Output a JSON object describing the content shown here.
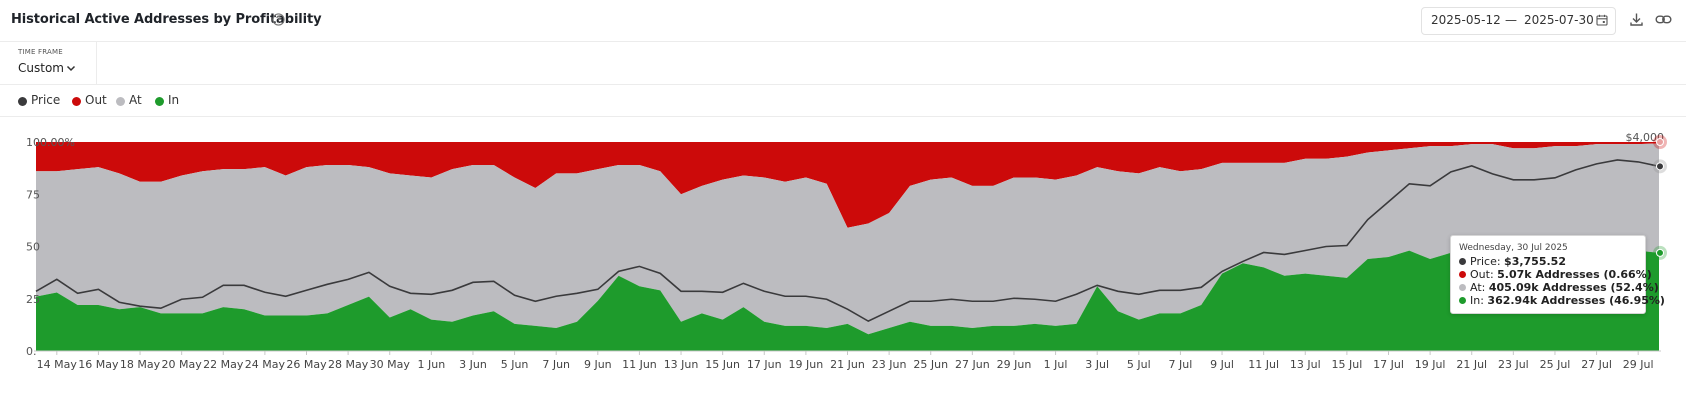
{
  "header": {
    "title": "Historical Active Addresses by Profitability",
    "help_icon": "help-circle-icon"
  },
  "date_range": {
    "start": "2025-05-12",
    "separator": "—",
    "end": "2025-07-30",
    "icon": "calendar-icon"
  },
  "toolbar": {
    "download_icon": "download-icon",
    "link_icon": "link-icon"
  },
  "time_frame": {
    "label": "TIME FRAME",
    "value": "Custom",
    "icon": "chevron-down-icon"
  },
  "legend": [
    {
      "name": "Price",
      "color": "#3a3a3c"
    },
    {
      "name": "Out",
      "color": "#cc0a0a"
    },
    {
      "name": "At",
      "color": "#bcbcc0"
    },
    {
      "name": "In",
      "color": "#1e9b2c"
    }
  ],
  "tooltip": {
    "date": "Wednesday, 30 Jul 2025",
    "rows": [
      {
        "label": "Price:",
        "value": "$3,755.52",
        "color": "#3a3a3c"
      },
      {
        "label": "Out:",
        "value": "5.07k Addresses (0.66%)",
        "color": "#cc0a0a"
      },
      {
        "label": "At:",
        "value": "405.09k Addresses (52.4%)",
        "color": "#bcbcc0"
      },
      {
        "label": "In:",
        "value": "362.94k Addresses (46.95%)",
        "color": "#1e9b2c"
      }
    ]
  },
  "chart_data": {
    "type": "area",
    "stacked": "percent",
    "x": [
      "13 May",
      "14 May",
      "15 May",
      "16 May",
      "17 May",
      "18 May",
      "19 May",
      "20 May",
      "21 May",
      "22 May",
      "23 May",
      "24 May",
      "25 May",
      "26 May",
      "27 May",
      "28 May",
      "29 May",
      "30 May",
      "31 May",
      "1 Jun",
      "2 Jun",
      "3 Jun",
      "4 Jun",
      "5 Jun",
      "6 Jun",
      "7 Jun",
      "8 Jun",
      "9 Jun",
      "10 Jun",
      "11 Jun",
      "12 Jun",
      "13 Jun",
      "14 Jun",
      "15 Jun",
      "16 Jun",
      "17 Jun",
      "18 Jun",
      "19 Jun",
      "20 Jun",
      "21 Jun",
      "22 Jun",
      "23 Jun",
      "24 Jun",
      "25 Jun",
      "26 Jun",
      "27 Jun",
      "28 Jun",
      "29 Jun",
      "30 Jun",
      "1 Jul",
      "2 Jul",
      "3 Jul",
      "4 Jul",
      "5 Jul",
      "6 Jul",
      "7 Jul",
      "8 Jul",
      "9 Jul",
      "10 Jul",
      "11 Jul",
      "12 Jul",
      "13 Jul",
      "14 Jul",
      "15 Jul",
      "16 Jul",
      "17 Jul",
      "18 Jul",
      "19 Jul",
      "20 Jul",
      "21 Jul",
      "22 Jul",
      "23 Jul",
      "24 Jul",
      "25 Jul",
      "26 Jul",
      "27 Jul",
      "28 Jul",
      "29 Jul",
      "30 Jul"
    ],
    "x_tick_labels": [
      "14 May",
      "16 May",
      "18 May",
      "20 May",
      "22 May",
      "24 May",
      "26 May",
      "28 May",
      "30 May",
      "1 Jun",
      "3 Jun",
      "5 Jun",
      "7 Jun",
      "9 Jun",
      "11 Jun",
      "13 Jun",
      "15 Jun",
      "17 Jun",
      "19 Jun",
      "21 Jun",
      "23 Jun",
      "25 Jun",
      "27 Jun",
      "29 Jun",
      "1 Jul",
      "3 Jul",
      "5 Jul",
      "7 Jul",
      "9 Jul",
      "11 Jul",
      "13 Jul",
      "15 Jul",
      "17 Jul",
      "19 Jul",
      "21 Jul",
      "23 Jul",
      "25 Jul",
      "27 Jul",
      "29 Jul"
    ],
    "series": [
      {
        "name": "In",
        "values": [
          26,
          28,
          22,
          22,
          20,
          21,
          18,
          18,
          18,
          21,
          20,
          17,
          17,
          17,
          18,
          22,
          26,
          16,
          20,
          15,
          14,
          17,
          19,
          13,
          12,
          11,
          14,
          24,
          36,
          31,
          29,
          14,
          18,
          15,
          21,
          14,
          12,
          12,
          11,
          13,
          8,
          11,
          14,
          12,
          12,
          11,
          12,
          12,
          13,
          12,
          13,
          31,
          19,
          15,
          18,
          18,
          22,
          37,
          42,
          40,
          36,
          37,
          36,
          35,
          44,
          45,
          48,
          44,
          47,
          49,
          48,
          47,
          46,
          48,
          46,
          45,
          47,
          48,
          46.95
        ]
      },
      {
        "name": "Out",
        "values": [
          14,
          14,
          13,
          12,
          15,
          19,
          19,
          16,
          14,
          13,
          13,
          12,
          16,
          12,
          11,
          11,
          12,
          15,
          16,
          17,
          13,
          11,
          11,
          17,
          22,
          15,
          15,
          13,
          11,
          11,
          14,
          25,
          21,
          18,
          16,
          17,
          19,
          17,
          20,
          41,
          39,
          34,
          21,
          18,
          17,
          21,
          21,
          17,
          17,
          18,
          16,
          12,
          14,
          15,
          12,
          14,
          13,
          10,
          10,
          10,
          10,
          8,
          8,
          7,
          5,
          4,
          3,
          2,
          2,
          1,
          1,
          3,
          3,
          2,
          2,
          1,
          1,
          1,
          0.66
        ]
      },
      {
        "name": "At",
        "values": [
          60,
          58,
          65,
          66,
          65,
          60,
          63,
          66,
          68,
          66,
          67,
          71,
          67,
          71,
          71,
          67,
          62,
          69,
          64,
          68,
          73,
          72,
          70,
          70,
          66,
          74,
          71,
          63,
          53,
          58,
          57,
          61,
          61,
          67,
          63,
          69,
          69,
          71,
          69,
          46,
          53,
          55,
          65,
          70,
          71,
          68,
          67,
          71,
          70,
          70,
          71,
          57,
          67,
          70,
          70,
          68,
          65,
          53,
          48,
          50,
          54,
          55,
          56,
          58,
          51,
          51,
          49,
          54,
          51,
          50,
          51,
          50,
          51,
          50,
          52,
          54,
          52,
          51,
          52.4
        ]
      },
      {
        "name": "Price",
        "values": [
          2500,
          2620,
          2480,
          2520,
          2390,
          2350,
          2330,
          2420,
          2440,
          2560,
          2560,
          2490,
          2450,
          2510,
          2570,
          2620,
          2690,
          2550,
          2480,
          2470,
          2510,
          2590,
          2600,
          2460,
          2400,
          2450,
          2480,
          2520,
          2700,
          2750,
          2680,
          2500,
          2500,
          2490,
          2580,
          2500,
          2450,
          2450,
          2420,
          2320,
          2200,
          2300,
          2400,
          2400,
          2420,
          2400,
          2400,
          2430,
          2420,
          2400,
          2470,
          2560,
          2500,
          2470,
          2510,
          2510,
          2540,
          2700,
          2800,
          2890,
          2870,
          2910,
          2950,
          2960,
          3220,
          3400,
          3580,
          3560,
          3700,
          3760,
          3680,
          3620,
          3620,
          3640,
          3720,
          3780,
          3820,
          3800,
          3755.52
        ]
      }
    ],
    "y_left": {
      "ticks": [
        "0.",
        "25",
        "50",
        "75",
        "100.00%"
      ],
      "range": [
        0,
        100
      ]
    },
    "y_right": {
      "ticks": [
        "$4,000"
      ],
      "range": [
        1900,
        4000
      ]
    },
    "legend_placement": "top-left"
  }
}
